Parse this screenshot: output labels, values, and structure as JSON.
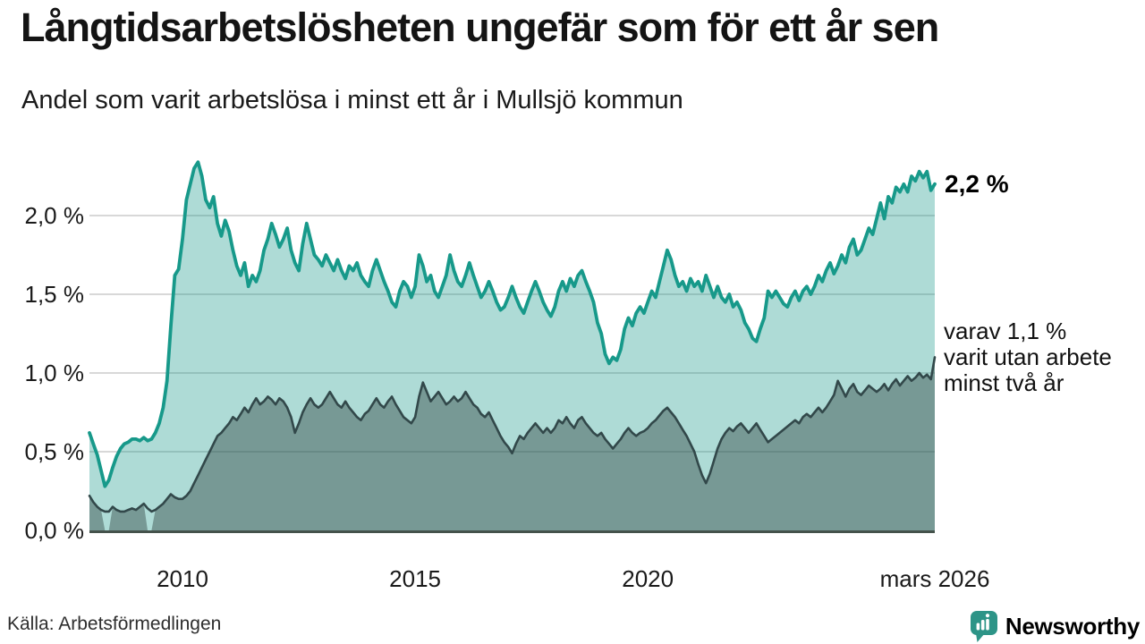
{
  "header": {
    "title": "Långtidsarbetslösheten ungefär som för ett år sen",
    "subtitle": "Andel som varit arbetslösa i minst ett år i Mullsjö kommun"
  },
  "chart_data": {
    "type": "area",
    "title": "Långtidsarbetslösheten ungefär som för ett år sen",
    "subtitle": "Andel som varit arbetslösa i minst ett år i Mullsjö kommun",
    "unit": "%",
    "frequency": "monthly",
    "x_start": "2008-01",
    "x_end": "2026-03",
    "ylim": [
      0,
      2.45
    ],
    "grid": "horizontal",
    "grid_color": "#d8d8d8",
    "baseline_color": "#44524b",
    "y_ticks": [
      {
        "value": 0.0,
        "label": "0,0 %"
      },
      {
        "value": 0.5,
        "label": "0,5 %"
      },
      {
        "value": 1.0,
        "label": "1,0 %"
      },
      {
        "value": 1.5,
        "label": "1,5 %"
      },
      {
        "value": 2.0,
        "label": "2,0 %"
      }
    ],
    "x_ticks": [
      {
        "index": 24,
        "label": "2010"
      },
      {
        "index": 84,
        "label": "2015"
      },
      {
        "index": 144,
        "label": "2020"
      },
      {
        "index": 218,
        "label": "mars 2026"
      }
    ],
    "series": [
      {
        "name": "Andel arbetslösa minst ett år",
        "line_color": "#17998a",
        "fill_color": "rgba(23,153,138,0.35)",
        "line_width": 3.8,
        "end_value": 2.2,
        "values": [
          0.62,
          0.55,
          0.48,
          0.38,
          0.28,
          0.32,
          0.4,
          0.47,
          0.52,
          0.55,
          0.56,
          0.58,
          0.58,
          0.57,
          0.59,
          0.57,
          0.58,
          0.62,
          0.68,
          0.78,
          0.95,
          1.3,
          1.62,
          1.66,
          1.85,
          2.1,
          2.2,
          2.3,
          2.34,
          2.25,
          2.1,
          2.05,
          2.12,
          1.95,
          1.87,
          1.97,
          1.9,
          1.78,
          1.68,
          1.62,
          1.7,
          1.55,
          1.62,
          1.58,
          1.65,
          1.78,
          1.85,
          1.95,
          1.88,
          1.8,
          1.85,
          1.92,
          1.78,
          1.7,
          1.65,
          1.82,
          1.95,
          1.85,
          1.75,
          1.72,
          1.68,
          1.75,
          1.7,
          1.65,
          1.72,
          1.65,
          1.6,
          1.68,
          1.65,
          1.7,
          1.62,
          1.58,
          1.55,
          1.65,
          1.72,
          1.65,
          1.58,
          1.52,
          1.45,
          1.42,
          1.52,
          1.58,
          1.55,
          1.48,
          1.55,
          1.75,
          1.68,
          1.58,
          1.62,
          1.52,
          1.48,
          1.55,
          1.62,
          1.75,
          1.65,
          1.58,
          1.55,
          1.62,
          1.7,
          1.62,
          1.55,
          1.48,
          1.52,
          1.58,
          1.52,
          1.45,
          1.4,
          1.42,
          1.48,
          1.55,
          1.48,
          1.42,
          1.38,
          1.45,
          1.52,
          1.58,
          1.52,
          1.45,
          1.4,
          1.36,
          1.42,
          1.52,
          1.58,
          1.52,
          1.6,
          1.55,
          1.62,
          1.65,
          1.58,
          1.52,
          1.45,
          1.32,
          1.25,
          1.12,
          1.06,
          1.1,
          1.08,
          1.15,
          1.28,
          1.35,
          1.3,
          1.38,
          1.42,
          1.38,
          1.45,
          1.52,
          1.48,
          1.58,
          1.68,
          1.78,
          1.72,
          1.62,
          1.55,
          1.58,
          1.52,
          1.6,
          1.55,
          1.58,
          1.52,
          1.62,
          1.55,
          1.48,
          1.55,
          1.48,
          1.45,
          1.5,
          1.42,
          1.45,
          1.4,
          1.32,
          1.28,
          1.22,
          1.2,
          1.28,
          1.35,
          1.52,
          1.48,
          1.52,
          1.48,
          1.44,
          1.42,
          1.48,
          1.52,
          1.46,
          1.52,
          1.55,
          1.5,
          1.55,
          1.62,
          1.58,
          1.65,
          1.7,
          1.63,
          1.68,
          1.75,
          1.7,
          1.8,
          1.85,
          1.75,
          1.78,
          1.85,
          1.92,
          1.88,
          1.98,
          2.08,
          1.98,
          2.12,
          2.08,
          2.18,
          2.15,
          2.2,
          2.15,
          2.25,
          2.22,
          2.28,
          2.24,
          2.28,
          2.16,
          2.2
        ]
      },
      {
        "name": "Andel arbetslösa minst två år",
        "line_color": "#32484a",
        "fill_color": "rgba(42,62,60,0.42)",
        "line_width": 2.6,
        "end_value": 1.1,
        "zero_fill_month_indices": [
          4,
          5,
          15,
          16
        ],
        "values": [
          0.22,
          0.18,
          0.15,
          0.13,
          0.12,
          0.12,
          0.15,
          0.13,
          0.12,
          0.12,
          0.13,
          0.14,
          0.13,
          0.15,
          0.17,
          0.14,
          0.12,
          0.13,
          0.15,
          0.17,
          0.2,
          0.23,
          0.21,
          0.2,
          0.2,
          0.22,
          0.25,
          0.3,
          0.35,
          0.4,
          0.45,
          0.5,
          0.55,
          0.6,
          0.62,
          0.65,
          0.68,
          0.72,
          0.7,
          0.74,
          0.78,
          0.75,
          0.8,
          0.84,
          0.8,
          0.82,
          0.85,
          0.83,
          0.8,
          0.84,
          0.82,
          0.78,
          0.72,
          0.62,
          0.68,
          0.75,
          0.8,
          0.84,
          0.8,
          0.78,
          0.8,
          0.84,
          0.88,
          0.84,
          0.8,
          0.78,
          0.82,
          0.78,
          0.75,
          0.72,
          0.7,
          0.74,
          0.76,
          0.8,
          0.84,
          0.8,
          0.78,
          0.82,
          0.85,
          0.8,
          0.76,
          0.72,
          0.7,
          0.68,
          0.72,
          0.85,
          0.94,
          0.88,
          0.82,
          0.85,
          0.88,
          0.84,
          0.8,
          0.82,
          0.85,
          0.82,
          0.84,
          0.88,
          0.84,
          0.8,
          0.78,
          0.74,
          0.72,
          0.75,
          0.7,
          0.65,
          0.6,
          0.56,
          0.53,
          0.49,
          0.55,
          0.6,
          0.58,
          0.62,
          0.65,
          0.68,
          0.65,
          0.62,
          0.65,
          0.62,
          0.65,
          0.7,
          0.68,
          0.72,
          0.68,
          0.65,
          0.7,
          0.72,
          0.68,
          0.65,
          0.62,
          0.6,
          0.62,
          0.58,
          0.55,
          0.52,
          0.55,
          0.58,
          0.62,
          0.65,
          0.62,
          0.6,
          0.62,
          0.63,
          0.65,
          0.68,
          0.7,
          0.73,
          0.76,
          0.78,
          0.75,
          0.72,
          0.68,
          0.64,
          0.6,
          0.55,
          0.5,
          0.42,
          0.35,
          0.3,
          0.36,
          0.44,
          0.52,
          0.58,
          0.62,
          0.65,
          0.63,
          0.66,
          0.68,
          0.65,
          0.62,
          0.65,
          0.68,
          0.64,
          0.6,
          0.56,
          0.58,
          0.6,
          0.62,
          0.64,
          0.66,
          0.68,
          0.7,
          0.68,
          0.72,
          0.74,
          0.72,
          0.75,
          0.78,
          0.75,
          0.78,
          0.82,
          0.86,
          0.95,
          0.9,
          0.85,
          0.9,
          0.93,
          0.88,
          0.86,
          0.89,
          0.92,
          0.9,
          0.88,
          0.9,
          0.93,
          0.89,
          0.93,
          0.96,
          0.92,
          0.95,
          0.98,
          0.95,
          0.97,
          1.0,
          0.97,
          0.99,
          0.96,
          1.1
        ]
      }
    ],
    "annotations": {
      "primary": {
        "text": "2,2 %",
        "value": 2.2
      },
      "secondary": {
        "lines": [
          "varav 1,1 %",
          "varit utan arbete",
          "minst två år"
        ],
        "value": 1.1
      }
    }
  },
  "footer": {
    "source": "Källa: Arbetsförmedlingen",
    "brand": {
      "name": "Newsworthy",
      "color": "#2d9487"
    }
  }
}
